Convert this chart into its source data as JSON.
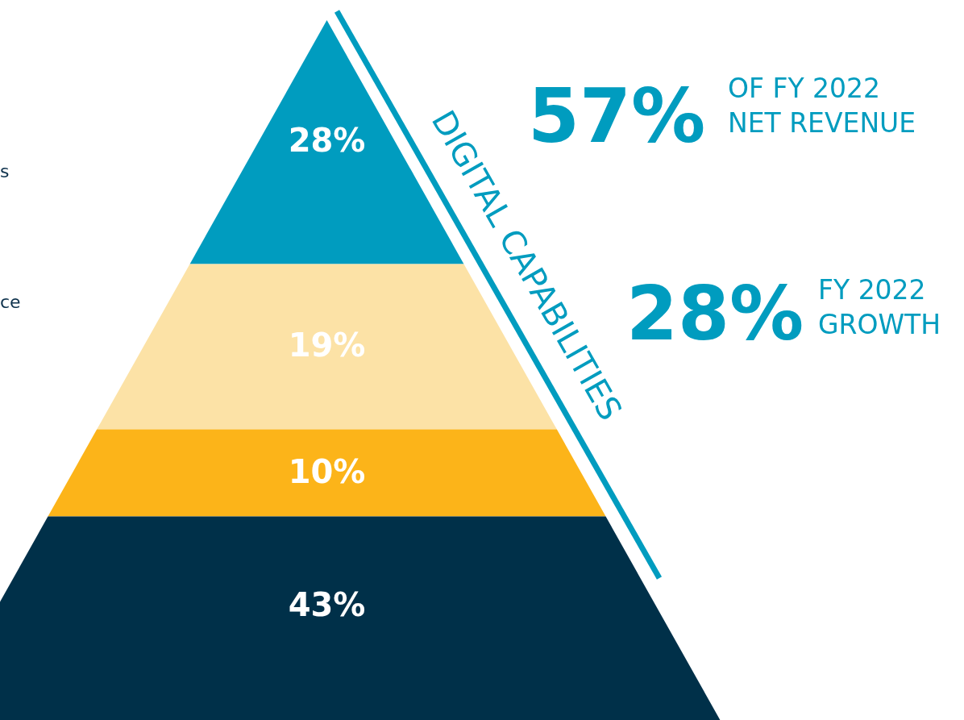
{
  "chart_data": {
    "type": "other",
    "categories": [
      null,
      null,
      null,
      null
    ],
    "values": [
      28,
      19,
      10,
      43
    ],
    "value_labels": [
      "28%",
      "19%",
      "10%",
      "43%"
    ],
    "colors": [
      "#009cbf",
      "#fce2a6",
      "#fcb419",
      "#003049"
    ],
    "annotations": [
      "DIGITAL CAPABILITIES",
      "57%",
      "OF FY 2022\nNET REVENUE",
      "28%",
      "FY 2022\nGROWTH",
      "s",
      "ce"
    ]
  }
}
